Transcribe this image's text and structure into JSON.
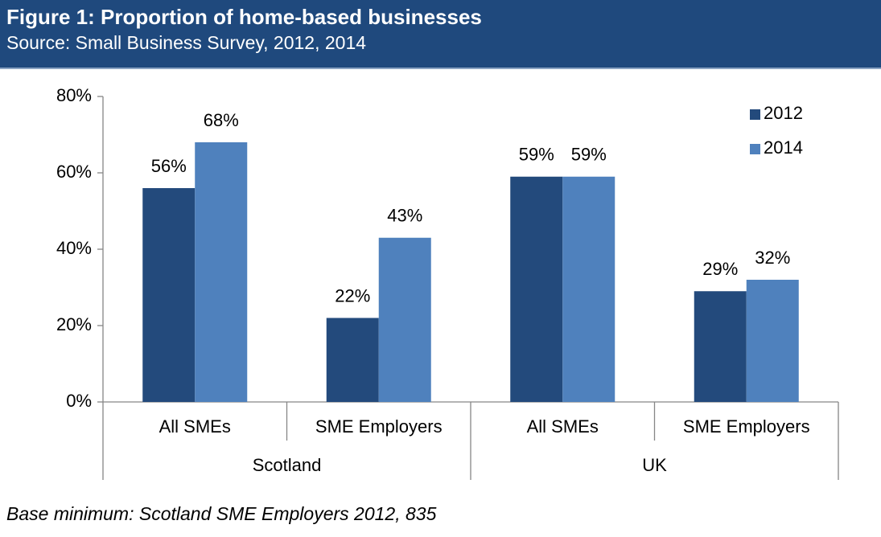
{
  "chart_data": {
    "type": "bar",
    "title": "Figure 1: Proportion of home-based businesses",
    "subtitle": "Source: Small Business Survey, 2012, 2014",
    "groups": [
      {
        "name": "Scotland",
        "categories": [
          "All SMEs",
          "SME Employers"
        ]
      },
      {
        "name": "UK",
        "categories": [
          "All SMEs",
          "SME Employers"
        ]
      }
    ],
    "series": [
      {
        "name": "2012",
        "color": "#234a7c",
        "values": [
          56,
          22,
          59,
          29
        ],
        "value_labels": [
          "56%",
          "22%",
          "59%",
          "29%"
        ]
      },
      {
        "name": "2014",
        "color": "#4f81bd",
        "values": [
          68,
          43,
          59,
          32
        ],
        "value_labels": [
          "68%",
          "43%",
          "59%",
          "32%"
        ]
      }
    ],
    "ylim": [
      0,
      80
    ],
    "yticks": [
      {
        "value": 0,
        "label": "0%"
      },
      {
        "value": 20,
        "label": "20%"
      },
      {
        "value": 40,
        "label": "40%"
      },
      {
        "value": 60,
        "label": "60%"
      },
      {
        "value": 80,
        "label": "80%"
      }
    ],
    "legend": "top-right",
    "note": "Base minimum: Scotland SME Employers 2012, 835"
  }
}
